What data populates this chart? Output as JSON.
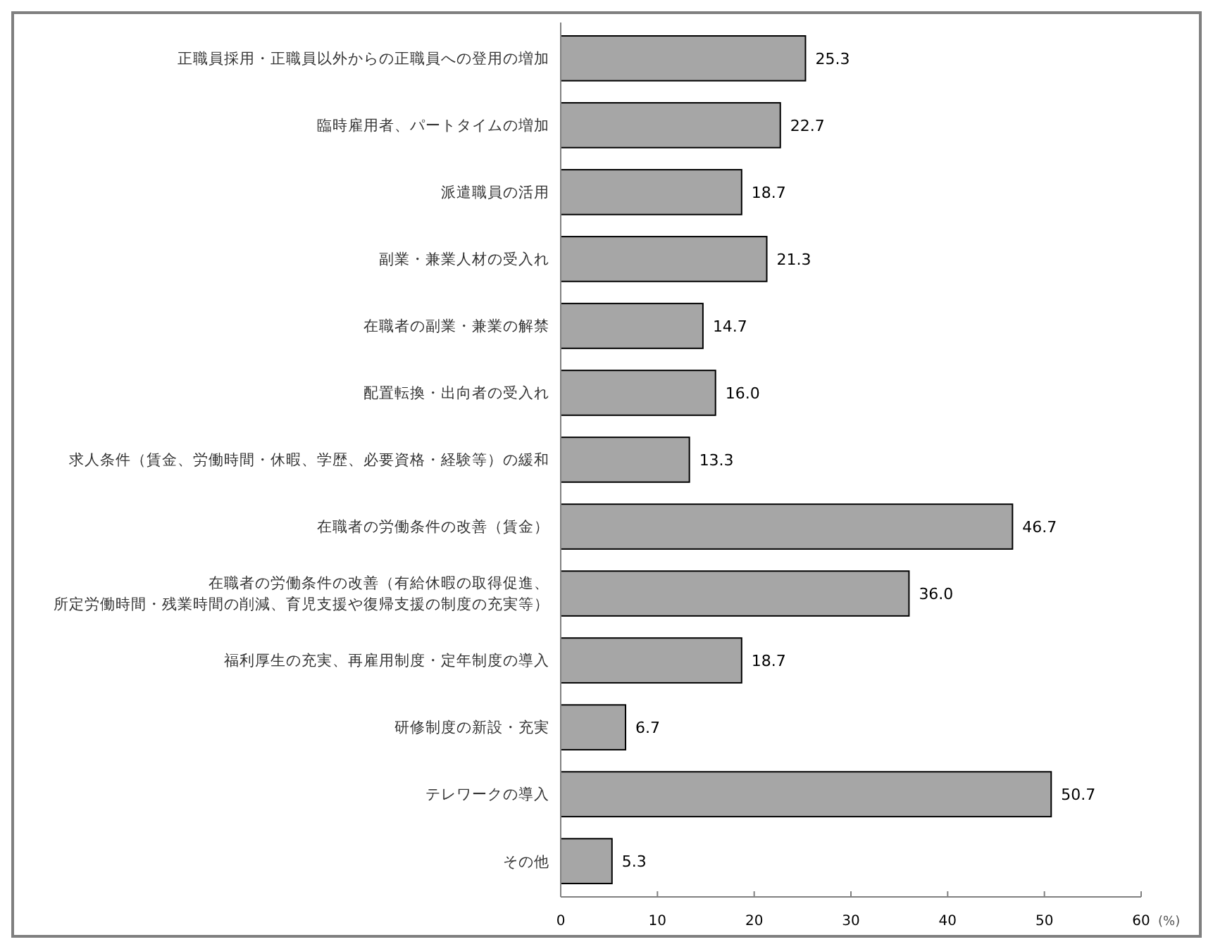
{
  "chart_data": {
    "type": "bar",
    "orientation": "horizontal",
    "categories": [
      "正職員採用・正職員以外からの正職員への登用の増加",
      "臨時雇用者、パートタイムの増加",
      "派遣職員の活用",
      "副業・兼業人材の受入れ",
      "在職者の副業・兼業の解禁",
      "配置転換・出向者の受入れ",
      "求人条件（賃金、労働時間・休暇、学歴、必要資格・経験等）の緩和",
      "在職者の労働条件の改善（賃金）",
      "在職者の労働条件の改善（有給休暇の取得促進、所定労働時間・残業時間の削減、育児支援や復帰支援の制度の充実等）",
      "福利厚生の充実、再雇用制度・定年制度の導入",
      "研修制度の新設・充実",
      "テレワークの導入",
      "その他"
    ],
    "values": [
      25.3,
      22.7,
      18.7,
      21.3,
      14.7,
      16.0,
      13.3,
      46.7,
      36.0,
      18.7,
      6.7,
      50.7,
      5.3
    ],
    "value_labels": [
      "25.3",
      "22.7",
      "18.7",
      "21.3",
      "14.7",
      "16.0",
      "13.3",
      "46.7",
      "36.0",
      "18.7",
      "6.7",
      "50.7",
      "5.3"
    ],
    "color": "#a6a6a6",
    "xlim": [
      0,
      60
    ],
    "xticks": [
      0,
      10,
      20,
      30,
      40,
      50,
      60
    ],
    "xlabel": "(%)",
    "grid": false
  }
}
